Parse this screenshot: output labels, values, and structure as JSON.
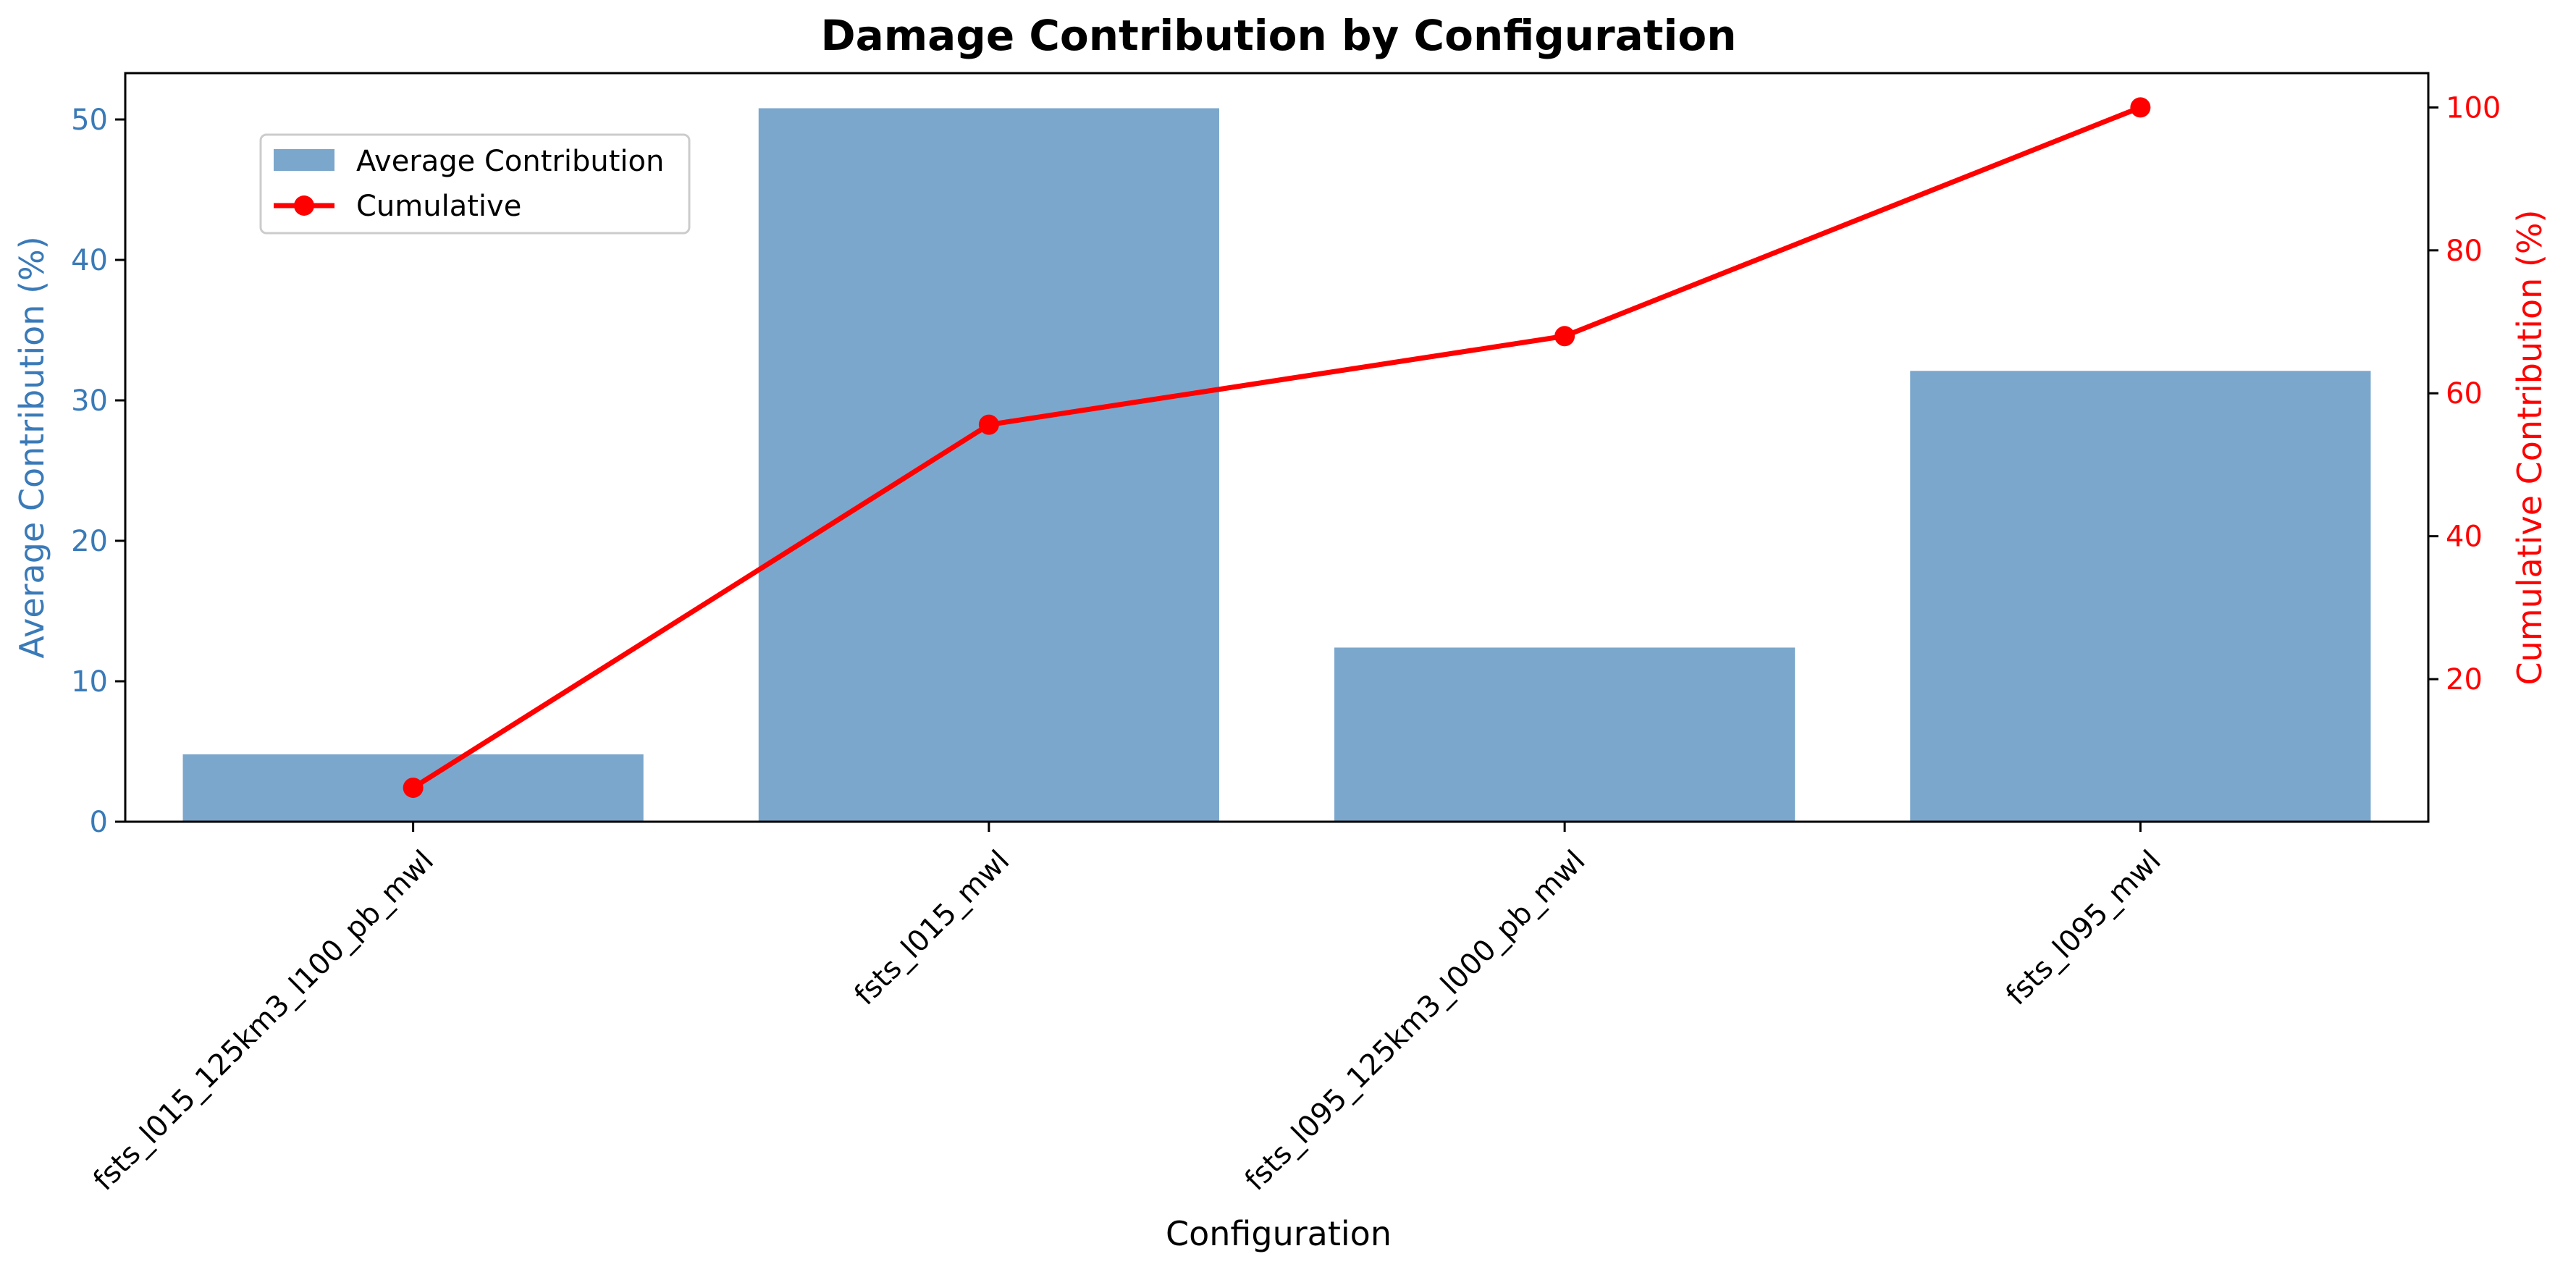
{
  "chart_data": {
    "type": "bar",
    "title": "Damage Contribution by Configuration",
    "xlabel": "Configuration",
    "ylabel": "Average Contribution (%)",
    "y2label": "Cumulative Contribution (%)",
    "categories": [
      "fsts_l015_125km3_l100_pb_mwl",
      "fsts_l015_mwl",
      "fsts_l095_125km3_l000_pb_mwl",
      "fsts_l095_mwl"
    ],
    "series": [
      {
        "name": "Average Contribution",
        "type": "bar",
        "axis": "left",
        "color": "#7ba7cc",
        "values": [
          4.8,
          50.8,
          12.4,
          32.1
        ]
      },
      {
        "name": "Cumulative",
        "type": "line",
        "axis": "right",
        "color": "#ff0000",
        "values": [
          4.8,
          55.6,
          68.0,
          100.0
        ]
      }
    ],
    "ylim": [
      0,
      53.3
    ],
    "y_ticks": [
      0,
      10,
      20,
      30,
      40,
      50
    ],
    "y2lim": [
      0.05,
      104.8
    ],
    "y2_ticks": [
      20,
      40,
      60,
      80,
      100
    ],
    "left_axis_color": "#3a7ab8",
    "right_axis_color": "#ff0000",
    "legend_position": "top-left",
    "grid": false
  }
}
